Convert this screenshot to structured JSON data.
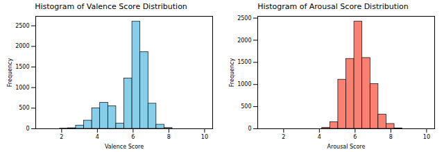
{
  "chart_data": [
    {
      "type": "histogram",
      "title": "Histogram of Valence Score Distribution",
      "x_label": "Valence Score",
      "y_label": "Frequency",
      "color": "#87ceeb",
      "grid": false,
      "bins": [
        1,
        1.45,
        1.9,
        2.35,
        2.8,
        3.25,
        3.7,
        4.15,
        4.6,
        5.05,
        5.5,
        5.95,
        6.4,
        6.85,
        7.3,
        7.75,
        8.2,
        8.65,
        9.1,
        9.55,
        10
      ],
      "values": [
        0,
        0,
        5,
        15,
        80,
        200,
        500,
        630,
        550,
        130,
        1220,
        2600,
        1860,
        610,
        100,
        20,
        0,
        0,
        0,
        0
      ],
      "xlim": [
        0.55,
        10.45
      ],
      "xticks": [
        2,
        4,
        6,
        8,
        10
      ],
      "ylim": [
        0,
        2730
      ],
      "yticks": [
        0,
        500,
        1000,
        1500,
        2000,
        2500
      ]
    },
    {
      "type": "histogram",
      "title": "Histogram of Arousal Score Distribution",
      "x_label": "Arousal Score",
      "y_label": "Frequency",
      "color": "#fa8072",
      "grid": false,
      "bins": [
        1,
        1.45,
        1.9,
        2.35,
        2.8,
        3.25,
        3.7,
        4.15,
        4.6,
        5.05,
        5.5,
        5.95,
        6.4,
        6.85,
        7.3,
        7.75,
        8.2,
        8.65,
        9.1,
        9.55,
        10
      ],
      "values": [
        0,
        0,
        0,
        0,
        0,
        0,
        0,
        20,
        150,
        1110,
        1580,
        2420,
        1600,
        1010,
        320,
        110,
        10,
        0,
        0,
        0
      ],
      "xlim": [
        0.55,
        10.45
      ],
      "xticks": [
        2,
        4,
        6,
        8,
        10
      ],
      "ylim": [
        0,
        2540
      ],
      "yticks": [
        0,
        500,
        1000,
        1500,
        2000,
        2500
      ]
    }
  ]
}
